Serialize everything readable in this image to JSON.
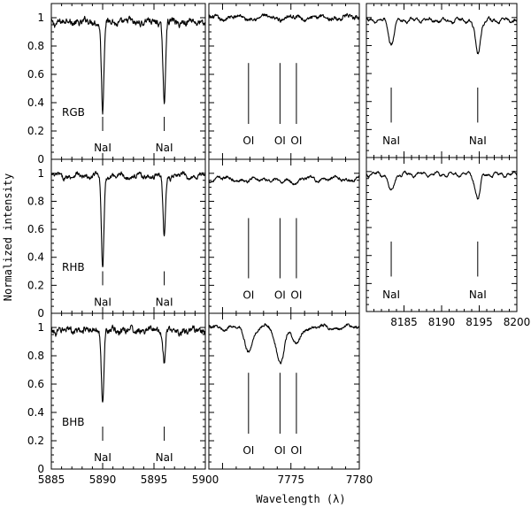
{
  "chart_data": {
    "type": "line",
    "ylabel": "Normalized intensity",
    "xlabel": "Wavelength (λ)",
    "rows": [
      "RGB",
      "RHB",
      "BHB"
    ],
    "columns": [
      {
        "key": "na",
        "xlim": [
          5885,
          5900
        ],
        "xticks": [
          "5885",
          "5890",
          "5895",
          "5900"
        ],
        "xtick_values": [
          5885,
          5890,
          5895,
          5900
        ],
        "line_markers": [
          {
            "label": "NaI",
            "x": 5890.0
          },
          {
            "label": "NaI",
            "x": 5896.0
          }
        ]
      },
      {
        "key": "oi",
        "xlim": [
          7769,
          7780
        ],
        "xticks": [
          "7775",
          "7780"
        ],
        "xtick_values": [
          7775,
          7780
        ],
        "line_markers": [
          {
            "label": "OI",
            "x": 7771.9
          },
          {
            "label": "OI",
            "x": 7774.2
          },
          {
            "label": "OI",
            "x": 7775.4
          }
        ]
      },
      {
        "key": "na2",
        "xlim": [
          8180,
          8200
        ],
        "xticks": [
          "8185",
          "8190",
          "8195",
          "8200"
        ],
        "xtick_values": [
          8185,
          8190,
          8195,
          8200
        ],
        "line_markers": [
          {
            "label": "NaI",
            "x": 8183.3
          },
          {
            "label": "NaI",
            "x": 8194.8
          }
        ]
      }
    ],
    "ylim": [
      0,
      1.1
    ],
    "yticks": [
      "0",
      "0.2",
      "0.4",
      "0.6",
      "0.8",
      "1"
    ],
    "ytick_values": [
      0,
      0.2,
      0.4,
      0.6,
      0.8,
      1.0
    ],
    "panels": [
      {
        "row": 0,
        "col": 0,
        "star": "RGB",
        "profile": {
          "continuum": 0.97,
          "noise": 0.035,
          "lines": [
            {
              "x": 5890.0,
              "depth": 0.64,
              "width": 0.12
            },
            {
              "x": 5896.0,
              "depth": 0.59,
              "width": 0.12
            }
          ]
        }
      },
      {
        "row": 0,
        "col": 1,
        "star": "",
        "profile": {
          "continuum": 1.0,
          "noise": 0.02,
          "lines": []
        }
      },
      {
        "row": 0,
        "col": 2,
        "star": "",
        "profile": {
          "continuum": 0.98,
          "noise": 0.015,
          "lines": [
            {
              "x": 8183.3,
              "depth": 0.17,
              "width": 0.35
            },
            {
              "x": 8194.8,
              "depth": 0.23,
              "width": 0.35
            }
          ]
        }
      },
      {
        "row": 1,
        "col": 0,
        "star": "RHB",
        "profile": {
          "continuum": 0.98,
          "noise": 0.025,
          "lines": [
            {
              "x": 5890.0,
              "depth": 0.67,
              "width": 0.12
            },
            {
              "x": 5896.0,
              "depth": 0.44,
              "width": 0.12
            }
          ]
        }
      },
      {
        "row": 1,
        "col": 1,
        "star": "",
        "profile": {
          "continuum": 0.96,
          "noise": 0.015,
          "lines": [
            {
              "x": 7771.9,
              "depth": 0.02,
              "width": 0.3
            },
            {
              "x": 7774.2,
              "depth": 0.03,
              "width": 0.3
            },
            {
              "x": 7775.4,
              "depth": 0.02,
              "width": 0.3
            }
          ]
        }
      },
      {
        "row": 1,
        "col": 2,
        "star": "",
        "profile": {
          "continuum": 0.98,
          "noise": 0.012,
          "lines": [
            {
              "x": 8183.3,
              "depth": 0.13,
              "width": 0.35
            },
            {
              "x": 8194.8,
              "depth": 0.17,
              "width": 0.35
            }
          ]
        }
      },
      {
        "row": 2,
        "col": 0,
        "star": "BHB",
        "profile": {
          "continuum": 0.98,
          "noise": 0.035,
          "lines": [
            {
              "x": 5890.0,
              "depth": 0.52,
              "width": 0.12
            },
            {
              "x": 5896.0,
              "depth": 0.23,
              "width": 0.12
            }
          ]
        }
      },
      {
        "row": 2,
        "col": 1,
        "star": "",
        "profile": {
          "continuum": 1.0,
          "noise": 0.015,
          "lines": [
            {
              "x": 7771.9,
              "depth": 0.16,
              "width": 0.3
            },
            {
              "x": 7774.2,
              "depth": 0.24,
              "width": 0.3
            },
            {
              "x": 7775.4,
              "depth": 0.12,
              "width": 0.3
            }
          ]
        }
      }
    ]
  }
}
